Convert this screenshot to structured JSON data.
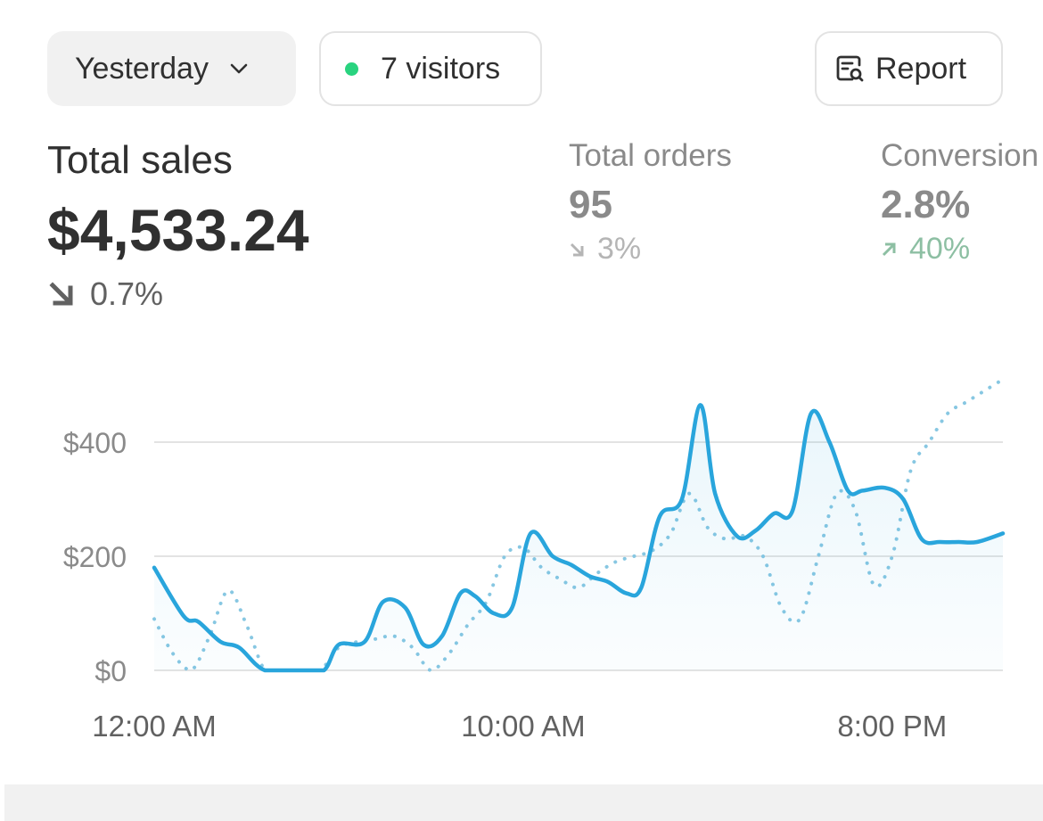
{
  "toolbar": {
    "date_label": "Yesterday",
    "visitors_label": "7 visitors",
    "report_label": "Report",
    "live_dot_color": "#29d37f"
  },
  "total_sales": {
    "label": "Total sales",
    "value": "$4,533.24",
    "change": "0.7%",
    "direction": "down"
  },
  "total_orders": {
    "label": "Total orders",
    "value": "95",
    "change": "3%",
    "direction": "down"
  },
  "conversion": {
    "label": "Conversion",
    "value": "2.8%",
    "change": "40%",
    "direction": "up"
  },
  "chart_data": {
    "type": "line",
    "y_tick_labels": [
      "$0",
      "$200",
      "$400"
    ],
    "y_ticks": [
      0,
      200,
      400
    ],
    "ylim": [
      0,
      400
    ],
    "x_tick_labels": [
      "12:00 AM",
      "10:00 AM",
      "8:00 PM"
    ],
    "x_tick_hours": [
      0,
      10,
      20
    ],
    "xlim": [
      0,
      23
    ],
    "grid": true,
    "series": [
      {
        "style": "solid",
        "color": "#29a5dc",
        "x": [
          0,
          0.8,
          1.2,
          1.8,
          2.3,
          3.0,
          4.0,
          4.6,
          5.0,
          5.7,
          6.2,
          6.8,
          7.3,
          7.8,
          8.3,
          8.7,
          9.2,
          9.7,
          10.2,
          10.8,
          11.3,
          11.8,
          12.3,
          12.8,
          13.2,
          13.7,
          14.3,
          14.8,
          15.2,
          15.8,
          16.3,
          16.8,
          17.3,
          17.8,
          18.3,
          18.8,
          19.2,
          19.8,
          20.3,
          20.8,
          21.3,
          21.8,
          22.3,
          23.0
        ],
        "y": [
          180,
          95,
          85,
          50,
          40,
          0,
          0,
          0,
          45,
          50,
          120,
          110,
          45,
          60,
          135,
          130,
          100,
          110,
          240,
          200,
          185,
          165,
          155,
          135,
          145,
          270,
          300,
          465,
          310,
          235,
          245,
          275,
          280,
          450,
          400,
          315,
          315,
          320,
          300,
          230,
          225,
          225,
          225,
          240
        ]
      },
      {
        "style": "dotted",
        "color": "#87c7e2",
        "x": [
          0,
          0.5,
          1.0,
          1.5,
          2.0,
          2.5,
          3.0,
          3.5,
          4.0,
          4.5,
          5.0,
          5.5,
          6.0,
          6.5,
          7.0,
          7.5,
          8.0,
          8.5,
          9.0,
          9.5,
          10.0,
          10.5,
          11.0,
          11.5,
          12.0,
          12.5,
          13.0,
          13.5,
          14.0,
          14.5,
          15.0,
          15.5,
          16.0,
          16.5,
          17.0,
          17.5,
          18.0,
          18.5,
          19.0,
          19.5,
          20.0,
          20.5,
          21.0,
          21.5,
          22.0,
          22.5,
          23.0
        ],
        "y": [
          90,
          30,
          0,
          60,
          140,
          80,
          0,
          0,
          0,
          0,
          40,
          50,
          55,
          60,
          40,
          0,
          30,
          80,
          120,
          200,
          215,
          180,
          160,
          145,
          170,
          190,
          200,
          210,
          240,
          310,
          250,
          230,
          235,
          200,
          110,
          90,
          200,
          310,
          280,
          150,
          200,
          350,
          400,
          450,
          470,
          490,
          510
        ]
      }
    ]
  }
}
